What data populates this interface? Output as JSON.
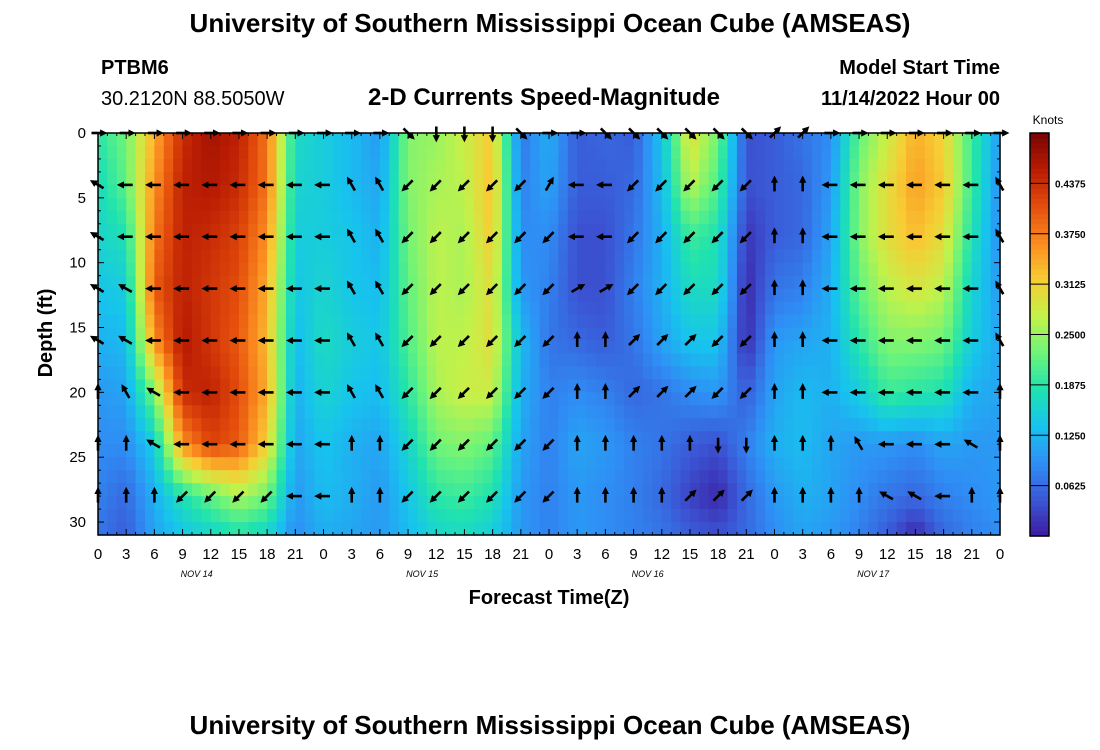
{
  "header": {
    "title": "University of Southern Mississippi Ocean Cube (AMSEAS)",
    "station_id": "PTBM6",
    "station_coords": "30.2120N  88.5050W",
    "plot_title": "2-D Currents Speed-Magnitude",
    "model_start_label": "Model Start Time",
    "model_start_value": "11/14/2022 Hour 00"
  },
  "footer": {
    "title": "University of Southern Mississippi Ocean Cube (AMSEAS)"
  },
  "colors": {
    "colormap": [
      "#3d1a9e",
      "#3b57d6",
      "#2f8ef5",
      "#17c3ee",
      "#1fe2b0",
      "#6cf47a",
      "#c2f24a",
      "#f7cd34",
      "#fb8c20",
      "#e44e0c",
      "#b91c03",
      "#7a0403"
    ]
  },
  "chart_data": {
    "type": "heatmap",
    "title": "2-D Currents Speed-Magnitude",
    "xlabel": "Forecast Time(Z)",
    "ylabel": "Depth (ft)",
    "xlim": [
      0,
      96
    ],
    "ylim": [
      31,
      0
    ],
    "x_tick_values": [
      0,
      3,
      6,
      9,
      12,
      15,
      18,
      21,
      24,
      27,
      30,
      33,
      36,
      39,
      42,
      45,
      48,
      51,
      54,
      57,
      60,
      63,
      66,
      69,
      72,
      75,
      78,
      81,
      84,
      87,
      90,
      93,
      96
    ],
    "x_tick_labels": [
      "0",
      "3",
      "6",
      "9",
      "12",
      "15",
      "18",
      "21",
      "0",
      "3",
      "6",
      "9",
      "12",
      "15",
      "18",
      "21",
      "0",
      "3",
      "6",
      "9",
      "12",
      "15",
      "18",
      "21",
      "0",
      "3",
      "6",
      "9",
      "12",
      "15",
      "18",
      "21",
      "0"
    ],
    "day_labels": [
      {
        "label": "NOV 14",
        "at_hour": 10.5
      },
      {
        "label": "NOV 15",
        "at_hour": 34.5
      },
      {
        "label": "NOV 16",
        "at_hour": 58.5
      },
      {
        "label": "NOV 17",
        "at_hour": 82.5
      }
    ],
    "y_ticks": [
      0,
      5,
      10,
      15,
      20,
      25,
      30
    ],
    "colorbar": {
      "label": "Knots",
      "min": 0,
      "max": 0.5,
      "ticks": [
        0.0625,
        0.125,
        0.1875,
        0.25,
        0.3125,
        0.375,
        0.4375
      ],
      "tick_labels": [
        "0.0625",
        "0.1250",
        "0.1875",
        "0.2500",
        "0.3125",
        "0.3750",
        "0.4375"
      ]
    },
    "grid_hours": [
      0,
      3,
      6,
      9,
      12,
      15,
      18,
      21,
      24,
      27,
      30,
      33,
      36,
      39,
      42,
      45,
      48,
      51,
      54,
      57,
      60,
      63,
      66,
      69,
      72,
      75,
      78,
      81,
      84,
      87,
      90,
      93,
      96
    ],
    "grid_depths_ft": [
      0,
      4,
      8,
      12,
      16,
      20,
      24,
      28,
      31
    ],
    "speed_knots": [
      [
        0.19,
        0.23,
        0.34,
        0.44,
        0.47,
        0.45,
        0.38,
        0.17,
        0.15,
        0.13,
        0.1,
        0.24,
        0.25,
        0.28,
        0.32,
        0.07,
        0.12,
        0.05,
        0.06,
        0.05,
        0.14,
        0.3,
        0.23,
        0.04,
        0.05,
        0.07,
        0.09,
        0.22,
        0.28,
        0.34,
        0.31,
        0.2,
        0.1
      ],
      [
        0.17,
        0.22,
        0.36,
        0.45,
        0.46,
        0.44,
        0.38,
        0.16,
        0.15,
        0.13,
        0.11,
        0.24,
        0.26,
        0.27,
        0.33,
        0.08,
        0.11,
        0.05,
        0.05,
        0.06,
        0.13,
        0.27,
        0.21,
        0.04,
        0.05,
        0.06,
        0.1,
        0.24,
        0.3,
        0.35,
        0.32,
        0.2,
        0.09
      ],
      [
        0.16,
        0.18,
        0.38,
        0.45,
        0.44,
        0.42,
        0.36,
        0.15,
        0.15,
        0.14,
        0.12,
        0.23,
        0.27,
        0.26,
        0.32,
        0.09,
        0.09,
        0.04,
        0.04,
        0.07,
        0.12,
        0.2,
        0.18,
        0.02,
        0.05,
        0.06,
        0.11,
        0.24,
        0.3,
        0.33,
        0.3,
        0.18,
        0.09
      ],
      [
        0.14,
        0.15,
        0.4,
        0.45,
        0.43,
        0.41,
        0.34,
        0.14,
        0.16,
        0.14,
        0.13,
        0.22,
        0.27,
        0.26,
        0.3,
        0.1,
        0.08,
        0.04,
        0.04,
        0.08,
        0.12,
        0.17,
        0.17,
        0.01,
        0.07,
        0.08,
        0.12,
        0.22,
        0.27,
        0.29,
        0.27,
        0.16,
        0.1
      ],
      [
        0.12,
        0.13,
        0.36,
        0.46,
        0.43,
        0.4,
        0.33,
        0.13,
        0.17,
        0.15,
        0.14,
        0.21,
        0.27,
        0.27,
        0.3,
        0.13,
        0.07,
        0.06,
        0.05,
        0.07,
        0.11,
        0.14,
        0.14,
        0.01,
        0.1,
        0.11,
        0.12,
        0.19,
        0.24,
        0.24,
        0.23,
        0.15,
        0.11
      ],
      [
        0.1,
        0.11,
        0.24,
        0.44,
        0.45,
        0.41,
        0.34,
        0.12,
        0.16,
        0.14,
        0.13,
        0.19,
        0.26,
        0.28,
        0.28,
        0.12,
        0.08,
        0.09,
        0.08,
        0.06,
        0.07,
        0.09,
        0.1,
        0.05,
        0.11,
        0.13,
        0.12,
        0.15,
        0.2,
        0.19,
        0.18,
        0.12,
        0.11
      ],
      [
        0.09,
        0.09,
        0.15,
        0.36,
        0.42,
        0.4,
        0.31,
        0.11,
        0.14,
        0.12,
        0.11,
        0.16,
        0.23,
        0.24,
        0.22,
        0.11,
        0.08,
        0.11,
        0.1,
        0.08,
        0.07,
        0.05,
        0.04,
        0.08,
        0.12,
        0.13,
        0.11,
        0.1,
        0.1,
        0.09,
        0.11,
        0.1,
        0.1
      ],
      [
        0.08,
        0.06,
        0.12,
        0.18,
        0.22,
        0.26,
        0.23,
        0.1,
        0.13,
        0.12,
        0.1,
        0.14,
        0.19,
        0.2,
        0.18,
        0.1,
        0.08,
        0.1,
        0.09,
        0.08,
        0.06,
        0.03,
        0.01,
        0.06,
        0.1,
        0.12,
        0.11,
        0.09,
        0.07,
        0.06,
        0.08,
        0.09,
        0.1
      ],
      [
        0.07,
        0.05,
        0.11,
        0.14,
        0.16,
        0.18,
        0.16,
        0.09,
        0.12,
        0.11,
        0.1,
        0.13,
        0.16,
        0.17,
        0.15,
        0.1,
        0.08,
        0.1,
        0.09,
        0.08,
        0.07,
        0.05,
        0.04,
        0.06,
        0.09,
        0.11,
        0.1,
        0.08,
        0.05,
        0.01,
        0.06,
        0.08,
        0.09
      ]
    ],
    "arrow_hours": [
      0,
      3,
      6,
      9,
      12,
      15,
      18,
      21,
      24,
      27,
      30,
      33,
      36,
      39,
      42,
      45,
      48,
      51,
      54,
      57,
      60,
      63,
      66,
      69,
      72,
      75,
      78,
      81,
      84,
      87,
      90,
      93,
      96
    ],
    "arrow_depths_ft": [
      0,
      4,
      8,
      12,
      16,
      20,
      24,
      28
    ],
    "arrow_direction_deg": [
      [
        90,
        90,
        90,
        90,
        90,
        90,
        90,
        90,
        90,
        90,
        90,
        135,
        180,
        180,
        180,
        135,
        90,
        90,
        135,
        135,
        135,
        135,
        135,
        135,
        45,
        45,
        90,
        90,
        90,
        90,
        90,
        90,
        90
      ],
      [
        300,
        270,
        270,
        270,
        270,
        270,
        270,
        270,
        270,
        330,
        330,
        225,
        225,
        225,
        225,
        225,
        30,
        270,
        270,
        225,
        225,
        225,
        225,
        225,
        0,
        0,
        270,
        270,
        270,
        270,
        270,
        270,
        330
      ],
      [
        300,
        270,
        270,
        270,
        270,
        270,
        270,
        270,
        270,
        330,
        330,
        225,
        225,
        225,
        225,
        225,
        225,
        270,
        270,
        225,
        225,
        225,
        225,
        225,
        0,
        0,
        270,
        270,
        270,
        270,
        270,
        270,
        330
      ],
      [
        300,
        300,
        270,
        270,
        270,
        270,
        270,
        270,
        270,
        330,
        330,
        225,
        225,
        225,
        225,
        225,
        225,
        60,
        60,
        225,
        225,
        225,
        225,
        225,
        0,
        0,
        270,
        270,
        270,
        270,
        270,
        270,
        330
      ],
      [
        300,
        300,
        270,
        270,
        270,
        270,
        270,
        270,
        270,
        330,
        330,
        225,
        225,
        225,
        225,
        225,
        225,
        0,
        0,
        45,
        45,
        45,
        225,
        225,
        0,
        0,
        270,
        270,
        270,
        270,
        270,
        270,
        330
      ],
      [
        0,
        330,
        300,
        270,
        270,
        270,
        270,
        270,
        270,
        330,
        330,
        225,
        225,
        225,
        225,
        225,
        225,
        0,
        0,
        45,
        45,
        45,
        225,
        225,
        0,
        0,
        270,
        270,
        270,
        270,
        270,
        270,
        0
      ],
      [
        0,
        0,
        300,
        270,
        270,
        270,
        270,
        270,
        270,
        0,
        0,
        225,
        225,
        225,
        225,
        225,
        225,
        0,
        0,
        0,
        0,
        0,
        180,
        180,
        0,
        0,
        0,
        330,
        270,
        270,
        270,
        300,
        0
      ],
      [
        0,
        0,
        0,
        225,
        225,
        225,
        225,
        270,
        270,
        0,
        0,
        225,
        225,
        225,
        225,
        225,
        225,
        0,
        0,
        0,
        0,
        45,
        45,
        45,
        0,
        0,
        0,
        0,
        300,
        300,
        270,
        0,
        0
      ]
    ]
  }
}
